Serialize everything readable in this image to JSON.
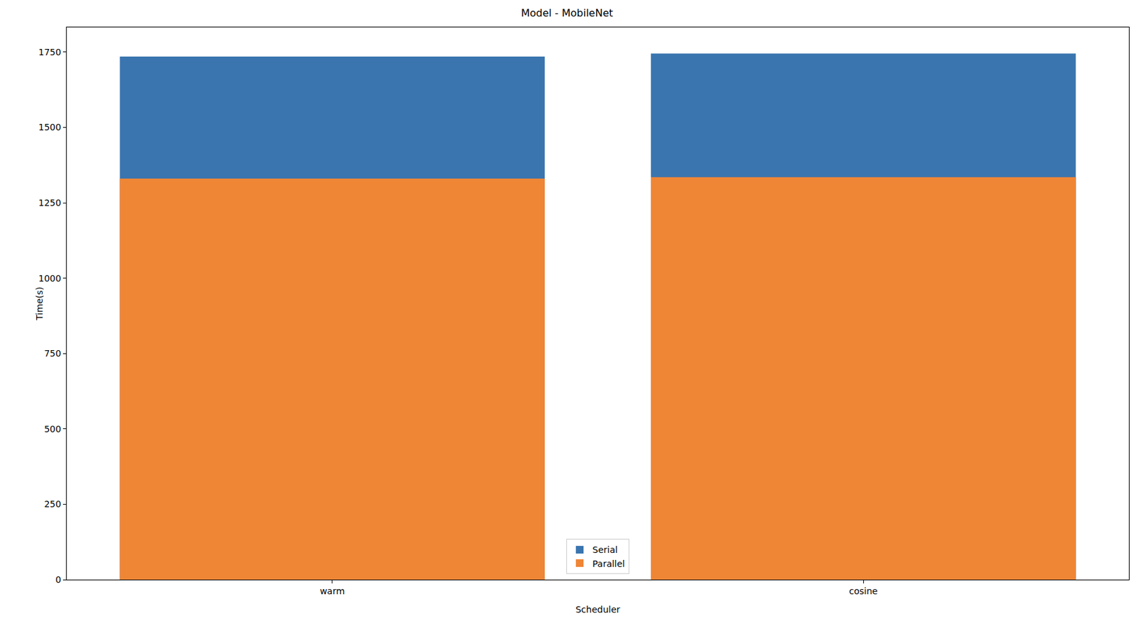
{
  "chart_data": {
    "type": "bar",
    "title": "Model - MobileNet",
    "x_label": "Scheduler",
    "y_label": "Time(s)",
    "categories": [
      "warm",
      "cosine"
    ],
    "series": [
      {
        "name": "Serial",
        "color": "#3a75af",
        "values": [
          1735,
          1745
        ]
      },
      {
        "name": "Parallel",
        "color": "#ef8636",
        "values": [
          1330,
          1335
        ]
      }
    ],
    "stacked": false,
    "ylim": [
      0,
      1832
    ],
    "yticks": [
      0,
      250,
      500,
      750,
      1000,
      1250,
      1500,
      1750
    ],
    "grid": false,
    "legend": "lower center"
  }
}
